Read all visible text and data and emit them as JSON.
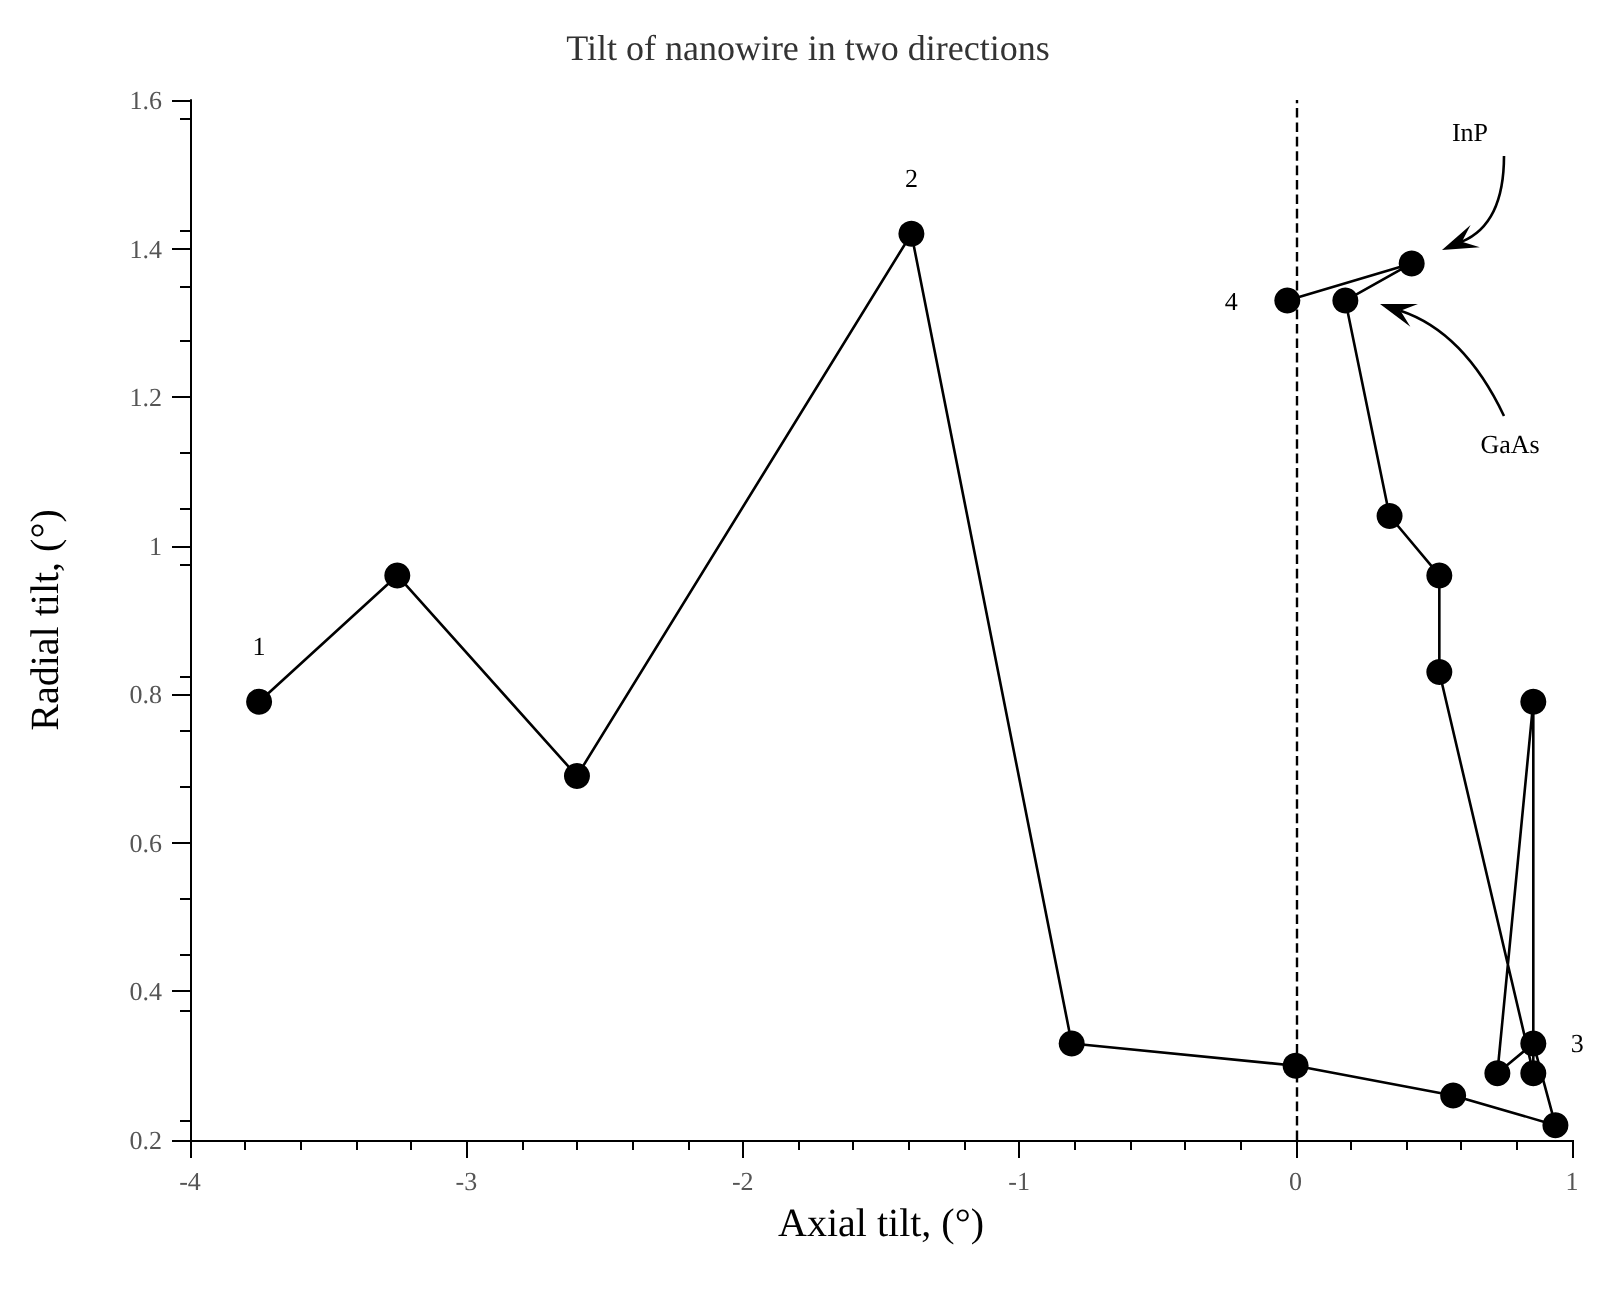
{
  "chart_data": {
    "type": "line",
    "title": "Tilt of nanowire in two directions",
    "xlabel": "Axial tilt, (°)",
    "ylabel": "Radial tilt, (°)",
    "x": [
      -3.75,
      -3.25,
      -2.6,
      -1.39,
      -0.81,
      0.0,
      0.57,
      0.94,
      0.86,
      0.73,
      0.86,
      0.86,
      0.52,
      0.52,
      0.34,
      0.18,
      0.42,
      -0.03
    ],
    "series": [
      {
        "color": "#000000",
        "values": [
          0.79,
          0.96,
          0.69,
          1.42,
          0.33,
          0.3,
          0.26,
          0.22,
          0.33,
          0.29,
          0.79,
          0.29,
          0.83,
          0.96,
          1.04,
          1.33,
          1.38,
          1.33
        ]
      }
    ],
    "xlim": [
      -4,
      1
    ],
    "xticks": [
      -4,
      -3,
      -2,
      -1,
      0,
      1
    ],
    "ylim": [
      0.2,
      1.6
    ],
    "yticks": [
      0.2,
      0.4,
      0.6,
      0.8,
      1,
      1.2,
      1.4,
      1.6
    ],
    "marker": "circle",
    "line_style": "solid",
    "grid": false,
    "ref_lines": [
      {
        "axis": "x",
        "value": 0,
        "line_style": "dashed",
        "color": "#000000"
      }
    ],
    "annotations": [
      {
        "text": "1",
        "x": -3.75,
        "y": 0.79
      },
      {
        "text": "2",
        "x": -1.39,
        "y": 1.42
      },
      {
        "text": "3",
        "x": 0.86,
        "y": 0.33
      },
      {
        "text": "4",
        "x": -0.03,
        "y": 1.33
      },
      "InP",
      "GaAs"
    ]
  }
}
